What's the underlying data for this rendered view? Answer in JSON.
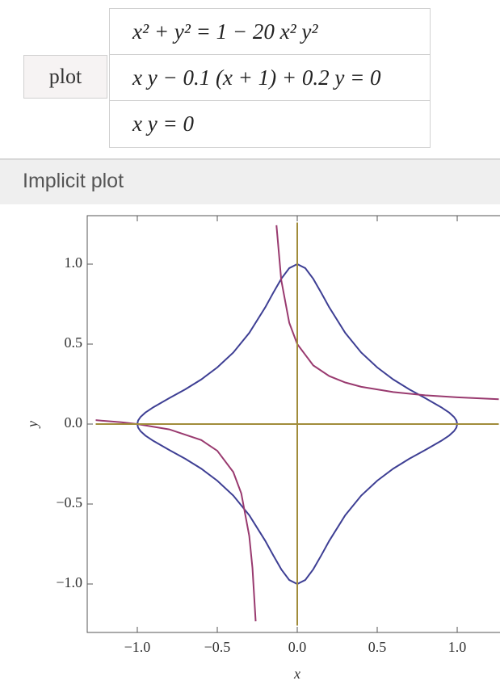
{
  "inputs": {
    "button": "plot",
    "equations": [
      "x² + y² = 1 − 20 x² y²",
      "x y − 0.1 (x + 1) + 0.2 y = 0",
      "x y = 0"
    ]
  },
  "pod": {
    "title": "Implicit plot"
  },
  "chart_data": {
    "type": "line",
    "x_label": "x",
    "y_label": "y",
    "xlim": [
      -1.313,
      1.313
    ],
    "ylim": [
      -1.303,
      1.303
    ],
    "xticks": [
      {
        "value": -1,
        "label": "−1.0"
      },
      {
        "value": -0.5,
        "label": "−0.5"
      },
      {
        "value": 0,
        "label": "0.0"
      },
      {
        "value": 0.5,
        "label": "0.5"
      },
      {
        "value": 1,
        "label": "1.0"
      }
    ],
    "yticks": [
      {
        "value": -1,
        "label": "−1.0"
      },
      {
        "value": -0.5,
        "label": "−0.5"
      },
      {
        "value": 0,
        "label": "0.0"
      },
      {
        "value": 0.5,
        "label": "0.5"
      },
      {
        "value": 1,
        "label": "1.0"
      }
    ],
    "series": [
      {
        "color": "#3e3f94",
        "x": [
          -1,
          -0.995,
          -0.98,
          -0.95,
          -0.9,
          -0.8,
          -0.7,
          -0.6,
          -0.5,
          -0.4,
          -0.3,
          -0.2,
          -0.15,
          -0.1,
          -0.05,
          0,
          0.05,
          0.1,
          0.15,
          0.2,
          0.3,
          0.4,
          0.5,
          0.6,
          0.7,
          0.8,
          0.9,
          0.95,
          0.98,
          0.995,
          1,
          0.995,
          0.98,
          0.95,
          0.9,
          0.8,
          0.7,
          0.6,
          0.5,
          0.4,
          0.3,
          0.2,
          0.15,
          0.1,
          0.05,
          0,
          -0.05,
          -0.1,
          -0.15,
          -0.2,
          -0.3,
          -0.4,
          -0.5,
          -0.6,
          -0.7,
          -0.8,
          -0.9,
          -0.95,
          -0.98,
          -0.995,
          -1
        ],
        "values": [
          0,
          0.0219,
          0.0443,
          0.0715,
          0.105,
          0.162,
          0.217,
          0.279,
          0.354,
          0.447,
          0.57,
          0.73,
          0.821,
          0.908,
          0.975,
          1,
          0.975,
          0.908,
          0.821,
          0.73,
          0.57,
          0.447,
          0.354,
          0.279,
          0.217,
          0.162,
          0.105,
          0.0715,
          0.0443,
          0.0219,
          0,
          -0.0219,
          -0.0443,
          -0.0715,
          -0.105,
          -0.162,
          -0.217,
          -0.279,
          -0.354,
          -0.447,
          -0.57,
          -0.73,
          -0.821,
          -0.908,
          -0.975,
          -1,
          -0.975,
          -0.908,
          -0.821,
          -0.73,
          -0.57,
          -0.447,
          -0.354,
          -0.279,
          -0.217,
          -0.162,
          -0.105,
          -0.0715,
          -0.0443,
          -0.0219,
          0
        ]
      },
      {
        "color": "#993a6f",
        "x": [
          -1.26,
          -1.1,
          -1,
          -0.8,
          -0.6,
          -0.5,
          -0.4,
          -0.35,
          -0.3,
          -0.28,
          -0.26,
          null,
          -0.13,
          -0.1,
          -0.05,
          0,
          0.1,
          0.2,
          0.3,
          0.4,
          0.6,
          0.8,
          1,
          1.26
        ],
        "values": [
          0.0245,
          0.0111,
          0,
          -0.0333,
          -0.1,
          -0.167,
          -0.3,
          -0.433,
          -0.7,
          -0.9,
          -1.233,
          null,
          1.243,
          0.9,
          0.633,
          0.5,
          0.367,
          0.3,
          0.26,
          0.233,
          0.2,
          0.18,
          0.167,
          0.155
        ]
      },
      {
        "color": "#a18c3b",
        "x": [
          -1.26,
          1.26,
          null,
          0,
          0
        ],
        "values": [
          0,
          0,
          null,
          -1.26,
          1.26
        ]
      }
    ]
  }
}
